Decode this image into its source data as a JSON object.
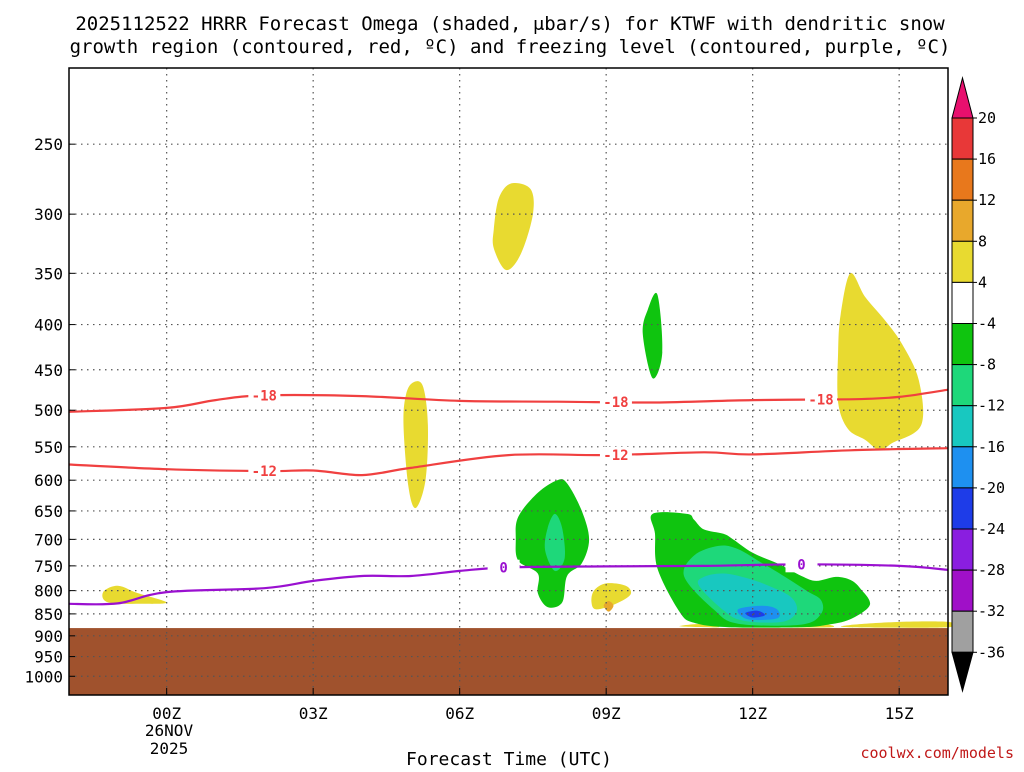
{
  "chart_data": {
    "type": "contour",
    "title": "2025112522 HRRR Forecast Omega (shaded, μbar/s) for KTWF with dendritic snow",
    "title_line2": "growth region (contoured, red, ºC) and freezing level (contoured, purple, ºC)",
    "xlabel": "Forecast Time (UTC)",
    "x_ticks": [
      "00Z",
      "03Z",
      "06Z",
      "09Z",
      "12Z",
      "15Z"
    ],
    "x_tick_hours": [
      0,
      3,
      6,
      9,
      12,
      15
    ],
    "x_range_hours": [
      -2,
      16
    ],
    "date_label": [
      "26NOV",
      "2025"
    ],
    "y_scale": "log",
    "y_reversed": true,
    "y_range_hPa": [
      1050,
      205
    ],
    "y_ticks": [
      250,
      300,
      350,
      400,
      450,
      500,
      550,
      600,
      650,
      700,
      750,
      800,
      850,
      900,
      950,
      1000
    ],
    "grid": "dotted",
    "ground_level_hPa": 882,
    "ground_color": "#a0522d",
    "colorbar": {
      "labels": [
        "20",
        "16",
        "12",
        "8",
        "4",
        "-4",
        "-8",
        "-12",
        "-16",
        "-20",
        "-24",
        "-28",
        "-32",
        "-36"
      ],
      "colors": [
        "#e8106e",
        "#e83838",
        "#e8781c",
        "#e8a82c",
        "#e8da30",
        "#ffffff",
        "#0fc40f",
        "#1ed87a",
        "#18c8c0",
        "#1e90f0",
        "#1e3ce8",
        "#8a1ee0",
        "#a010c8",
        "#a0a0a0",
        "#000000"
      ]
    },
    "contours": [
      {
        "name": "-18",
        "color": "#f04040",
        "label_hours": [
          2,
          9.2,
          13.4
        ],
        "points": [
          [
            -2,
            502
          ],
          [
            0,
            497
          ],
          [
            1,
            487
          ],
          [
            2,
            481
          ],
          [
            4,
            482
          ],
          [
            6,
            488
          ],
          [
            8,
            489
          ],
          [
            10,
            490
          ],
          [
            12,
            487
          ],
          [
            14,
            486
          ],
          [
            15,
            483
          ],
          [
            16,
            474
          ]
        ]
      },
      {
        "name": "-12",
        "color": "#f04040",
        "label_hours": [
          2,
          9.2
        ],
        "points": [
          [
            -2,
            576
          ],
          [
            0,
            583
          ],
          [
            2,
            586
          ],
          [
            3,
            585
          ],
          [
            4,
            592
          ],
          [
            5,
            581
          ],
          [
            7,
            562
          ],
          [
            9,
            562
          ],
          [
            11,
            558
          ],
          [
            12,
            561
          ],
          [
            14,
            555
          ],
          [
            16,
            552
          ]
        ]
      },
      {
        "name": "0",
        "color": "#9a10d0",
        "label_hours": [
          6.9,
          13
        ],
        "points": [
          [
            -2,
            828
          ],
          [
            -1,
            827
          ],
          [
            0,
            803
          ],
          [
            2,
            795
          ],
          [
            3,
            780
          ],
          [
            4,
            770
          ],
          [
            5,
            770
          ],
          [
            6,
            760
          ],
          [
            7,
            753
          ],
          [
            9,
            751
          ],
          [
            11,
            750
          ],
          [
            13,
            747
          ],
          [
            15,
            750
          ],
          [
            16,
            758
          ]
        ]
      }
    ],
    "shaded_regions": [
      {
        "level": "4 to 8",
        "color": "#e8da30",
        "points": [
          [
            6.7,
            328
          ],
          [
            6.95,
            347
          ],
          [
            7.25,
            333
          ],
          [
            7.5,
            300
          ],
          [
            7.45,
            281
          ],
          [
            7.05,
            277
          ],
          [
            6.8,
            288
          ],
          [
            6.7,
            312
          ]
        ]
      },
      {
        "level": "4 to 8",
        "color": "#e8da30",
        "points": [
          [
            4.85,
            520
          ],
          [
            4.95,
            610
          ],
          [
            5.1,
            645
          ],
          [
            5.3,
            600
          ],
          [
            5.35,
            520
          ],
          [
            5.25,
            470
          ],
          [
            5.05,
            465
          ],
          [
            4.9,
            480
          ]
        ]
      },
      {
        "level": "4 to 8",
        "color": "#e8da30",
        "points": [
          [
            13.75,
            430
          ],
          [
            13.75,
            490
          ],
          [
            13.95,
            525
          ],
          [
            14.3,
            540
          ],
          [
            14.6,
            555
          ],
          [
            14.85,
            545
          ],
          [
            15.45,
            520
          ],
          [
            15.4,
            462
          ],
          [
            15.05,
            420
          ],
          [
            14.7,
            395
          ],
          [
            14.3,
            372
          ],
          [
            14,
            350
          ],
          [
            13.8,
            390
          ]
        ]
      },
      {
        "level": "4 to 8",
        "color": "#e8da30",
        "points": [
          [
            -1.3,
            803
          ],
          [
            -1.2,
            825
          ],
          [
            -0.5,
            828
          ],
          [
            0,
            825
          ],
          [
            -0.6,
            805
          ],
          [
            -1.0,
            790
          ]
        ]
      },
      {
        "level": "4 to 8",
        "color": "#e8da30",
        "points": [
          [
            8.7,
            825
          ],
          [
            8.8,
            840
          ],
          [
            9.2,
            828
          ],
          [
            9.5,
            808
          ],
          [
            9.4,
            790
          ],
          [
            9.0,
            785
          ],
          [
            8.75,
            800
          ]
        ]
      },
      {
        "level": "4 to 8",
        "color": "#e8da30",
        "points": [
          [
            12.5,
            875
          ],
          [
            13,
            870
          ],
          [
            13.5,
            873
          ],
          [
            13.6,
            880
          ],
          [
            12.5,
            880
          ]
        ]
      },
      {
        "level": "4 to 8",
        "color": "#e8da30",
        "points": [
          [
            14,
            875
          ],
          [
            15,
            868
          ],
          [
            16,
            868
          ],
          [
            16,
            880
          ],
          [
            14,
            880
          ]
        ]
      },
      {
        "level": "4 to 8",
        "color": "#e8da30",
        "points": [
          [
            10.5,
            878
          ],
          [
            11,
            872
          ],
          [
            11.3,
            880
          ]
        ]
      },
      {
        "level": "-4 to -8",
        "color": "#0fc40f",
        "points": [
          [
            9.75,
            410
          ],
          [
            9.95,
            460
          ],
          [
            10.15,
            430
          ],
          [
            10.05,
            370
          ],
          [
            9.85,
            385
          ]
        ]
      },
      {
        "level": "-4 to -8",
        "color": "#0fc40f",
        "points": [
          [
            7.2,
            740
          ],
          [
            7.6,
            765
          ],
          [
            7.6,
            805
          ],
          [
            7.8,
            835
          ],
          [
            8.1,
            825
          ],
          [
            8.2,
            770
          ],
          [
            8.5,
            745
          ],
          [
            8.65,
            700
          ],
          [
            8.5,
            650
          ],
          [
            8.2,
            605
          ],
          [
            8,
            600
          ],
          [
            7.6,
            620
          ],
          [
            7.2,
            660
          ],
          [
            7.15,
            700
          ]
        ]
      },
      {
        "level": "-4 to -8",
        "color": "#0fc40f",
        "points": [
          [
            9.95,
            655
          ],
          [
            10.0,
            690
          ],
          [
            10.05,
            755
          ],
          [
            10.5,
            845
          ],
          [
            10.8,
            870
          ],
          [
            11.5,
            880
          ],
          [
            13,
            880
          ],
          [
            13.5,
            875
          ],
          [
            14,
            862
          ],
          [
            14.4,
            830
          ],
          [
            14.2,
            795
          ],
          [
            14,
            778
          ],
          [
            13.7,
            772
          ],
          [
            13.3,
            780
          ],
          [
            13,
            770
          ],
          [
            12.5,
            745
          ],
          [
            12.0,
            725
          ],
          [
            11.6,
            700
          ],
          [
            11.4,
            690
          ],
          [
            11.0,
            682
          ],
          [
            10.8,
            665
          ],
          [
            10.65,
            655
          ]
        ]
      },
      {
        "level": "-8 to -12",
        "color": "#1ed87a",
        "points": [
          [
            7.75,
            720
          ],
          [
            7.95,
            760
          ],
          [
            8.15,
            735
          ],
          [
            8.1,
            680
          ],
          [
            7.95,
            655
          ],
          [
            7.8,
            680
          ]
        ]
      },
      {
        "level": "-8 to -12",
        "color": "#1ed87a",
        "points": [
          [
            10.6,
            772
          ],
          [
            11.2,
            840
          ],
          [
            11.7,
            872
          ],
          [
            13,
            874
          ],
          [
            13.4,
            850
          ],
          [
            13.4,
            820
          ],
          [
            13.1,
            800
          ],
          [
            12.6,
            768
          ],
          [
            12.2,
            745
          ],
          [
            11.7,
            718
          ],
          [
            11.3,
            712
          ],
          [
            10.8,
            730
          ]
        ]
      },
      {
        "level": "-12 to -16",
        "color": "#18c8c0",
        "points": [
          [
            10.9,
            790
          ],
          [
            11.4,
            842
          ],
          [
            11.8,
            865
          ],
          [
            12.6,
            868
          ],
          [
            12.9,
            845
          ],
          [
            12.8,
            815
          ],
          [
            12.4,
            793
          ],
          [
            11.9,
            775
          ],
          [
            11.4,
            765
          ],
          [
            11.0,
            772
          ]
        ]
      },
      {
        "level": "-16 to -20",
        "color": "#1e90f0",
        "points": [
          [
            11.7,
            840
          ],
          [
            11.9,
            862
          ],
          [
            12.5,
            860
          ],
          [
            12.5,
            840
          ],
          [
            12.2,
            832
          ]
        ]
      },
      {
        "level": "-20 to -24",
        "color": "#1e3ce8",
        "points": [
          [
            11.85,
            848
          ],
          [
            12.0,
            858
          ],
          [
            12.25,
            853
          ],
          [
            12.1,
            843
          ]
        ]
      },
      {
        "level": "8 to 12",
        "color": "#e8a82c",
        "points": [
          [
            8.95,
            832
          ],
          [
            9.05,
            845
          ],
          [
            9.15,
            832
          ],
          [
            9.05,
            822
          ]
        ]
      }
    ]
  },
  "credit": "coolwx.com/models"
}
